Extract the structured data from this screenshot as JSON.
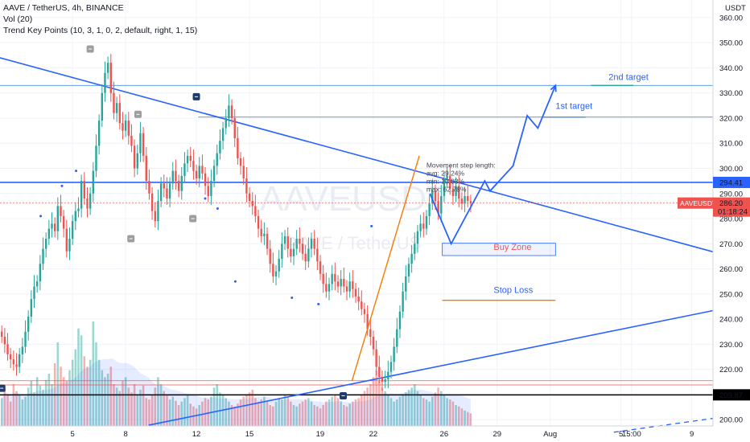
{
  "legend": {
    "symbol_line": "AAVE / TetherUS, 4h, BINANCE",
    "vol_line": "Vol (20)",
    "indicator_line": "Trend Key Points (10, 3, 1, 0, 2, default, right, 1, 15)"
  },
  "watermark": {
    "big": "AAVEUSDT",
    "small": "AAVE / TetherUS"
  },
  "colors": {
    "up": "#26a69a",
    "down": "#ef5350",
    "trend": "#2962ff",
    "projection": "#2962ff",
    "orange": "#f57c00",
    "target_line": "#4a90e2",
    "black": "#000000"
  },
  "chart_data": {
    "type": "candlestick",
    "symbol": "AAVEUSDT",
    "y_unit": "USDT",
    "y_ticks": [
      200,
      210,
      220,
      230,
      240,
      250,
      260,
      270,
      280,
      290,
      300,
      310,
      320,
      330,
      340,
      350,
      360
    ],
    "y_tick_labels": [
      "200.00",
      "210.00",
      "220.00",
      "230.00",
      "240.00",
      "250.00",
      "260.00",
      "270.00",
      "280.00",
      "290.00",
      "300.00",
      "310.00",
      "320.00",
      "330.00",
      "340.00",
      "350.00",
      "360.00"
    ],
    "x_tick_labels": [
      "5",
      "8",
      "12",
      "15",
      "19",
      "22",
      "26",
      "29",
      "Aug",
      "5",
      "15:00",
      "9"
    ],
    "x_tick_days": [
      5,
      8,
      12,
      15,
      19,
      22,
      26,
      29,
      32,
      36,
      36.6,
      40
    ],
    "x_range_days": [
      0.9,
      41.2
    ],
    "y_range": [
      197.5,
      367
    ],
    "candles_start_day": 1.0,
    "candle_interval_days": 0.1667,
    "closes": [
      233,
      230,
      226,
      224,
      222,
      221,
      226,
      229,
      235,
      241,
      248,
      253,
      255,
      262,
      268,
      272,
      276,
      278,
      275,
      285,
      281,
      276,
      267,
      272,
      279,
      283,
      284,
      295,
      288,
      284,
      290,
      299,
      309,
      319,
      330,
      338,
      342,
      330,
      322,
      326,
      318,
      315,
      319,
      313,
      309,
      300,
      306,
      314,
      305,
      295,
      290,
      283,
      279,
      287,
      294,
      292,
      288,
      294,
      299,
      295,
      291,
      297,
      302,
      305,
      303,
      299,
      296,
      301,
      298,
      293,
      289,
      295,
      301,
      306,
      311,
      316,
      320,
      325,
      320,
      312,
      304,
      301,
      296,
      290,
      287,
      285,
      281,
      276,
      273,
      274,
      268,
      262,
      257,
      259,
      264,
      270,
      273,
      268,
      265,
      268,
      272,
      270,
      266,
      263,
      268,
      272,
      268,
      263,
      258,
      254,
      251,
      254,
      258,
      255,
      253,
      256,
      253,
      251,
      255,
      252,
      249,
      247,
      244,
      242,
      236,
      233,
      228,
      221,
      217,
      215,
      216,
      219,
      223,
      229,
      236,
      243,
      251,
      257,
      262,
      266,
      270,
      275,
      278,
      276,
      281,
      286,
      291,
      287,
      282,
      289,
      296,
      297,
      292,
      289,
      293,
      288,
      286,
      289,
      287,
      286
    ],
    "volume": [
      40,
      55,
      45,
      35,
      60,
      50,
      45,
      38,
      42,
      55,
      65,
      48,
      70,
      58,
      52,
      66,
      75,
      60,
      90,
      120,
      85,
      70,
      65,
      80,
      95,
      110,
      140,
      130,
      100,
      85,
      95,
      150,
      120,
      95,
      80,
      70,
      75,
      85,
      60,
      55,
      50,
      65,
      70,
      55,
      48,
      60,
      45,
      52,
      58,
      40,
      38,
      45,
      55,
      70,
      60,
      50,
      45,
      38,
      42,
      36,
      30,
      35,
      40,
      45,
      32,
      28,
      25,
      30,
      35,
      40,
      38,
      42,
      55,
      60,
      48,
      45,
      40,
      35,
      30,
      28,
      32,
      38,
      42,
      45,
      48,
      52,
      40,
      35,
      38,
      42,
      36,
      30,
      28,
      35,
      40,
      38,
      45,
      42,
      35,
      30,
      28,
      32,
      35,
      38,
      40,
      35,
      30,
      28,
      25,
      30,
      35,
      38,
      42,
      45,
      40,
      35,
      30,
      28,
      32,
      35,
      38,
      40,
      45,
      50,
      55,
      60,
      70,
      80,
      65,
      55,
      50,
      45,
      40,
      35,
      38,
      42,
      45,
      48,
      52,
      55,
      60,
      50,
      45,
      40,
      38,
      35,
      42,
      48,
      55,
      50,
      45,
      40,
      38,
      35,
      30,
      28,
      25,
      22,
      20,
      18
    ],
    "horizontal_levels": [
      {
        "price": 294.41,
        "label": "294.41",
        "style": "solid-thick-blue"
      },
      {
        "price": 209.87,
        "label": "209.87",
        "style": "solid-black"
      },
      {
        "price": 215.5,
        "label": "",
        "style": "thin-red"
      },
      {
        "price": 213.8,
        "label": "",
        "style": "thin-red"
      },
      {
        "price": 333,
        "label": "",
        "style": "thin-blue"
      }
    ],
    "last_price": {
      "label": "AAVEUSDT",
      "price": "286.20",
      "countdown": "01:18:24",
      "value": 286.2
    },
    "annotations": [
      {
        "text": "2nd target",
        "day": 35.3,
        "price": 335.1
      },
      {
        "text": "1st target",
        "day": 32.3,
        "price": 323.6
      },
      {
        "text": "Buy Zone",
        "day": 28.8,
        "price": 267.5
      },
      {
        "text": "Stop Loss",
        "day": 28.8,
        "price": 250.4
      }
    ],
    "target_lines": [
      {
        "from_day": 34.3,
        "to_day": 36.7,
        "price": 333
      },
      {
        "from_day": 31.6,
        "to_day": 34.0,
        "price": 320.4
      }
    ],
    "buy_zone": {
      "from_day": 25.9,
      "to_day": 32.3,
      "high": 270.2,
      "low": 265.3
    },
    "stop_loss_line": {
      "from_day": 25.9,
      "to_day": 32.3,
      "price": 247.5
    },
    "trend_lines": [
      {
        "name": "upper",
        "points": [
          [
            0.9,
            344.0
          ],
          [
            41.2,
            266.8
          ]
        ]
      },
      {
        "name": "lower",
        "points": [
          [
            9.3,
            197.8
          ],
          [
            41.2,
            243.4
          ]
        ]
      },
      {
        "name": "dashed-ext",
        "points": [
          [
            35.6,
            195
          ],
          [
            41.2,
            200.5
          ]
        ],
        "dashed": true
      }
    ],
    "orange_lines": [
      {
        "points": [
          [
            20.8,
            215.5
          ],
          [
            24.6,
            305
          ]
        ]
      }
    ],
    "projection_path": [
      [
        25.2,
        290
      ],
      [
        26.4,
        270
      ],
      [
        28.3,
        295
      ],
      [
        28.6,
        291
      ],
      [
        29.9,
        301
      ],
      [
        30.7,
        321
      ],
      [
        31.3,
        316
      ],
      [
        32.3,
        333
      ]
    ],
    "stats_box": {
      "day": 25.0,
      "price": 300.3,
      "lines": [
        "Movement step length:",
        "avg: 29.24%",
        "min: 10.03%",
        "max: 62.78%"
      ]
    },
    "kp_markers": [
      {
        "day": 6.0,
        "price": 347.5,
        "kind": "high"
      },
      {
        "day": 8.7,
        "price": 321.5,
        "kind": "high"
      },
      {
        "day": 12.0,
        "price": 328.5,
        "kind": "high-dark"
      },
      {
        "day": 8.3,
        "price": 272,
        "kind": "low"
      },
      {
        "day": 11.8,
        "price": 280,
        "kind": "low"
      },
      {
        "day": 1.0,
        "price": 212.5,
        "kind": "low-dark"
      },
      {
        "day": 20.3,
        "price": 209.5,
        "kind": "low-dark"
      }
    ]
  }
}
